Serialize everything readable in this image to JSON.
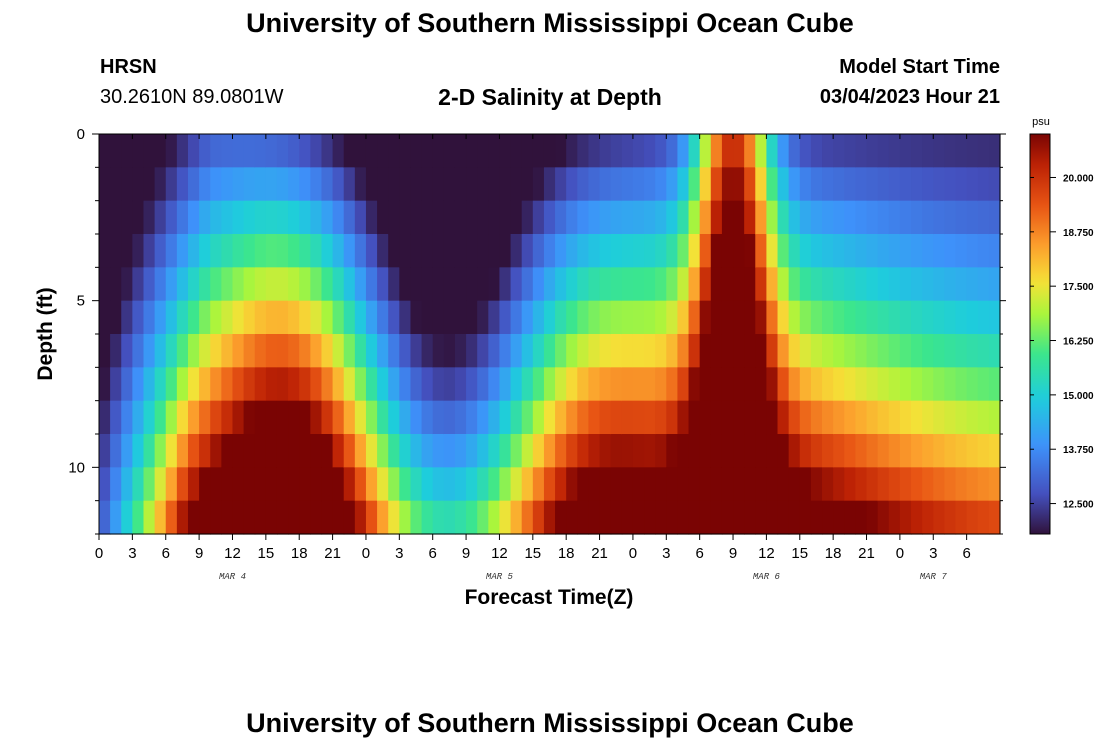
{
  "header": {
    "title": "University of Southern Mississippi Ocean Cube",
    "station": "HRSN",
    "coordinates": "30.2610N  89.0801W",
    "subtitle": "2-D Salinity at Depth",
    "model_start_label": "Model Start Time",
    "model_start_value": "03/04/2023 Hour 21"
  },
  "footer": {
    "title": "University of Southern Mississippi Ocean Cube"
  },
  "chart_data": {
    "type": "heatmap",
    "title": "2-D Salinity at Depth",
    "xlabel": "Forecast Time(Z)",
    "ylabel": "Depth (ft)",
    "x_hours": [
      0,
      81
    ],
    "y_range": [
      0,
      12
    ],
    "y_ticks": [
      0,
      5,
      10
    ],
    "x_tick_labels": [
      "0",
      "3",
      "6",
      "9",
      "12",
      "15",
      "18",
      "21",
      "0",
      "3",
      "6",
      "9",
      "12",
      "15",
      "18",
      "21",
      "0",
      "3",
      "6",
      "9",
      "12",
      "15",
      "18",
      "21",
      "0",
      "3",
      "6"
    ],
    "day_labels": [
      {
        "label": "MAR 4",
        "hour": 12
      },
      {
        "label": "MAR 5",
        "hour": 36
      },
      {
        "label": "MAR 6",
        "hour": 60
      },
      {
        "label": "MAR 7",
        "hour": 75
      }
    ],
    "colorbar": {
      "unit": "psu",
      "ticks": [
        "20.000",
        "18.750",
        "17.500",
        "16.250",
        "15.000",
        "13.750",
        "12.500"
      ],
      "tick_values": [
        20.0,
        18.75,
        17.5,
        16.25,
        15.0,
        13.75,
        12.5
      ],
      "range": [
        11.8,
        21.0
      ]
    },
    "grid": false
  }
}
